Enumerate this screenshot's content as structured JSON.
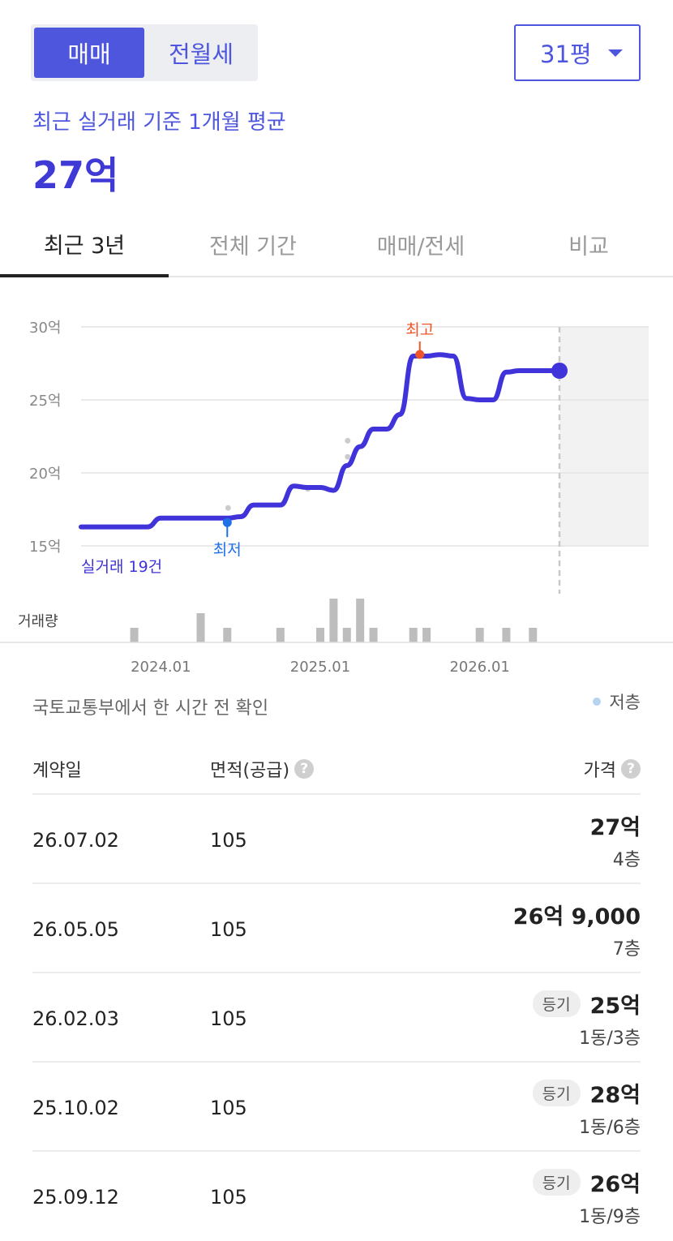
{
  "trade_type": {
    "active": "매매",
    "inactive": "전월세"
  },
  "size_select": {
    "value": "31평"
  },
  "summary": {
    "label": "최근 실거래 기준 1개월 평균",
    "price": "27억"
  },
  "tabs": [
    "최근 3년",
    "전체 기간",
    "매매/전세",
    "비교"
  ],
  "chart_data": {
    "type": "line",
    "y_unit": "억",
    "y_ticks": [
      "30억",
      "25억",
      "20억",
      "15억"
    ],
    "ylim": [
      15,
      30
    ],
    "x_ticks": [
      "2024.01",
      "2025.01",
      "2026.01"
    ],
    "x": [
      "2023.07",
      "2023.08",
      "2023.09",
      "2023.10",
      "2023.11",
      "2023.12",
      "2024.01",
      "2024.02",
      "2024.03",
      "2024.04",
      "2024.05",
      "2024.06",
      "2024.07",
      "2024.08",
      "2024.09",
      "2024.10",
      "2024.11",
      "2024.12",
      "2025.01",
      "2025.02",
      "2025.03",
      "2025.04",
      "2025.05",
      "2025.06",
      "2025.07",
      "2025.08",
      "2025.09",
      "2025.10",
      "2025.11",
      "2025.12",
      "2026.01",
      "2026.02",
      "2026.03",
      "2026.04",
      "2026.05",
      "2026.06",
      "2026.07"
    ],
    "values": [
      16.3,
      16.3,
      16.3,
      16.3,
      16.3,
      16.3,
      16.9,
      16.9,
      16.9,
      16.9,
      16.9,
      16.9,
      17.0,
      17.8,
      17.8,
      17.8,
      19.1,
      19.0,
      19.0,
      18.8,
      20.5,
      21.8,
      23.0,
      23.0,
      24.0,
      28.0,
      28.0,
      28.1,
      28.0,
      25.1,
      25.0,
      25.0,
      26.9,
      27.0,
      27.0,
      27.0,
      27.0
    ],
    "scatter": [
      {
        "x": "2024.06",
        "y": 17.6
      },
      {
        "x": "2024.12",
        "y": 18.9
      },
      {
        "x": "2025.03",
        "y": 22.2
      },
      {
        "x": "2025.03",
        "y": 21.1
      }
    ],
    "low": {
      "label": "최저",
      "x": "2024.06",
      "y": 16.6
    },
    "high": {
      "label": "최고",
      "x": "2025.08",
      "y": 28.0
    },
    "current": {
      "x": "2026.07",
      "y": 27.0
    },
    "trade_count_label": "실거래 19건",
    "volume_label": "거래량",
    "volume": [
      0,
      0,
      0,
      0,
      1,
      0,
      0,
      0,
      0,
      2,
      0,
      1,
      0,
      0,
      0,
      1,
      0,
      0,
      1,
      3,
      1,
      3,
      1,
      0,
      0,
      1,
      1,
      0,
      0,
      0,
      1,
      0,
      1,
      0,
      1,
      0,
      0
    ],
    "colors": {
      "line": "#3f33d9",
      "low": "#1f6fe8",
      "high": "#f0552a",
      "volume": "#bdbdbd",
      "scatter": "#cccccc"
    }
  },
  "source_text": "국토교통부에서 한 시간 전 확인",
  "legend_low_floor": "저층",
  "table": {
    "headers": {
      "date": "계약일",
      "area": "면적(공급)",
      "price": "가격"
    },
    "rows": [
      {
        "date": "26.07.02",
        "area": "105",
        "badge": "",
        "price": "27억",
        "floor": "4층"
      },
      {
        "date": "26.05.05",
        "area": "105",
        "badge": "",
        "price": "26억 9,000",
        "floor": "7층"
      },
      {
        "date": "26.02.03",
        "area": "105",
        "badge": "등기",
        "price": "25억",
        "floor": "1동/3층"
      },
      {
        "date": "25.10.02",
        "area": "105",
        "badge": "등기",
        "price": "28억",
        "floor": "1동/6층"
      },
      {
        "date": "25.09.12",
        "area": "105",
        "badge": "등기",
        "price": "26억",
        "floor": "1동/9층"
      }
    ]
  }
}
